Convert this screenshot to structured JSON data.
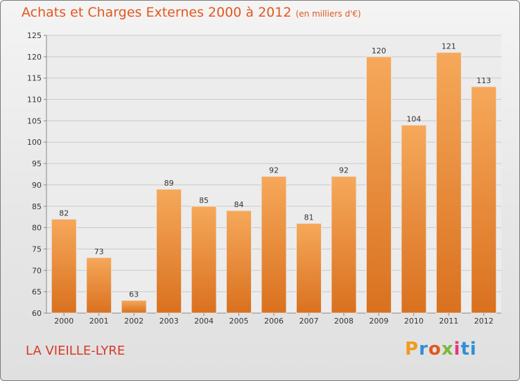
{
  "header": {
    "title": "Achats et Charges Externes 2000 à 2012",
    "unit": "(en milliers d'€)"
  },
  "footer": {
    "place": "LA VIEILLE-LYRE",
    "logo_letters": [
      "P",
      "r",
      "o",
      "x",
      "i",
      "ti"
    ]
  },
  "colors": {
    "title": "#e3571f",
    "bar_top": "#f6a85a",
    "bar_bottom": "#d9711f",
    "place": "#d63a2a"
  },
  "chart_data": {
    "type": "bar",
    "title": "Achats et Charges Externes 2000 à 2012",
    "subtitle": "(en milliers d'€)",
    "xlabel": "",
    "ylabel": "",
    "categories": [
      "2000",
      "2001",
      "2002",
      "2003",
      "2004",
      "2005",
      "2006",
      "2007",
      "2008",
      "2009",
      "2010",
      "2011",
      "2012"
    ],
    "values": [
      82,
      73,
      63,
      89,
      85,
      84,
      92,
      81,
      92,
      120,
      104,
      121,
      113
    ],
    "ylim": [
      60,
      125
    ],
    "yticks": [
      60,
      65,
      70,
      75,
      80,
      85,
      90,
      95,
      100,
      105,
      110,
      115,
      120,
      125
    ],
    "grid": true,
    "data_labels": true,
    "legend": "none"
  }
}
